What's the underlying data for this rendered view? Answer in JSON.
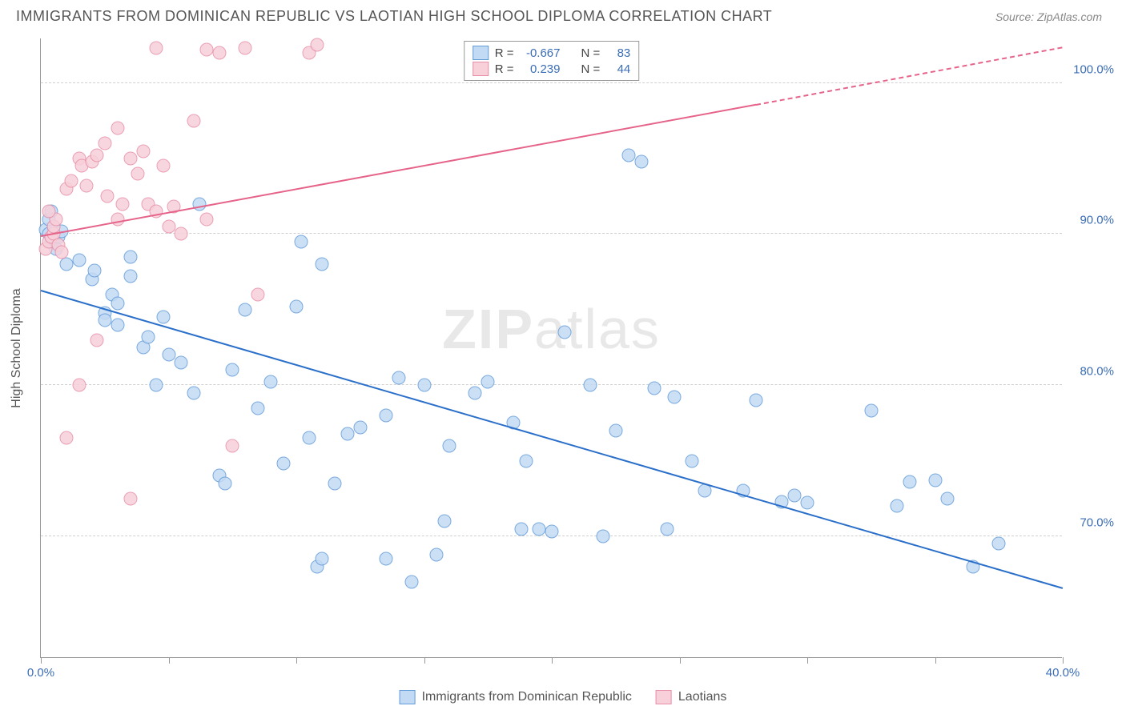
{
  "title": "IMMIGRANTS FROM DOMINICAN REPUBLIC VS LAOTIAN HIGH SCHOOL DIPLOMA CORRELATION CHART",
  "source": "Source: ZipAtlas.com",
  "watermark_a": "ZIP",
  "watermark_b": "atlas",
  "y_axis_title": "High School Diploma",
  "chart": {
    "type": "scatter",
    "xlim": [
      0,
      40
    ],
    "ylim": [
      62,
      103
    ],
    "x_ticks": [
      0,
      5,
      10,
      15,
      20,
      25,
      30,
      35,
      40
    ],
    "x_tick_labels": {
      "0": "0.0%",
      "40": "40.0%"
    },
    "y_ticks": [
      70,
      80,
      90,
      100
    ],
    "y_tick_labels": [
      "70.0%",
      "80.0%",
      "90.0%",
      "100.0%"
    ],
    "grid_color": "#d0d0d0",
    "background_color": "#ffffff",
    "axis_color": "#999999",
    "label_color": "#3b6db5",
    "point_radius": 8.5,
    "series": [
      {
        "name": "Immigrants from Dominican Republic",
        "fill": "#c3daf4",
        "stroke": "#629cd9",
        "line_color": "#2a6fc9",
        "R": "-0.667",
        "N": "83",
        "trend": {
          "x1": 0,
          "y1": 86.2,
          "x2": 40,
          "y2": 66.5
        },
        "points": [
          [
            0.2,
            90.3
          ],
          [
            0.3,
            90.0
          ],
          [
            0.4,
            89.5
          ],
          [
            0.5,
            90.5
          ],
          [
            0.5,
            89.7
          ],
          [
            0.6,
            89.0
          ],
          [
            0.7,
            89.8
          ],
          [
            0.8,
            90.2
          ],
          [
            0.3,
            91.0
          ],
          [
            0.4,
            91.5
          ],
          [
            1.0,
            88.0
          ],
          [
            1.5,
            88.3
          ],
          [
            2.0,
            87.0
          ],
          [
            2.1,
            87.6
          ],
          [
            2.5,
            84.8
          ],
          [
            2.5,
            84.3
          ],
          [
            2.8,
            86.0
          ],
          [
            3.0,
            85.4
          ],
          [
            3.0,
            84.0
          ],
          [
            3.5,
            88.5
          ],
          [
            3.5,
            87.2
          ],
          [
            4.0,
            82.5
          ],
          [
            4.2,
            83.2
          ],
          [
            4.5,
            80.0
          ],
          [
            4.8,
            84.5
          ],
          [
            5.0,
            82.0
          ],
          [
            5.5,
            81.5
          ],
          [
            6.0,
            79.5
          ],
          [
            6.2,
            92.0
          ],
          [
            7.0,
            74.0
          ],
          [
            7.2,
            73.5
          ],
          [
            7.5,
            81.0
          ],
          [
            8.0,
            85.0
          ],
          [
            8.5,
            78.5
          ],
          [
            9.0,
            80.2
          ],
          [
            9.5,
            74.8
          ],
          [
            10.0,
            85.2
          ],
          [
            10.2,
            89.5
          ],
          [
            10.5,
            76.5
          ],
          [
            10.8,
            68.0
          ],
          [
            11.0,
            68.5
          ],
          [
            11.0,
            88.0
          ],
          [
            11.5,
            73.5
          ],
          [
            12.0,
            76.8
          ],
          [
            12.5,
            77.2
          ],
          [
            13.5,
            68.5
          ],
          [
            13.5,
            78.0
          ],
          [
            14.0,
            80.5
          ],
          [
            14.5,
            67.0
          ],
          [
            15.0,
            80.0
          ],
          [
            15.5,
            68.8
          ],
          [
            15.8,
            71.0
          ],
          [
            16.0,
            76.0
          ],
          [
            17.0,
            79.5
          ],
          [
            17.5,
            80.2
          ],
          [
            18.5,
            77.5
          ],
          [
            18.8,
            70.5
          ],
          [
            19.0,
            75.0
          ],
          [
            19.5,
            70.5
          ],
          [
            20.0,
            70.3
          ],
          [
            20.5,
            83.5
          ],
          [
            21.5,
            80.0
          ],
          [
            22.0,
            70.0
          ],
          [
            22.5,
            77.0
          ],
          [
            24.0,
            79.8
          ],
          [
            24.5,
            70.5
          ],
          [
            24.8,
            79.2
          ],
          [
            25.5,
            75.0
          ],
          [
            26.0,
            73.0
          ],
          [
            27.5,
            73.0
          ],
          [
            28.0,
            79.0
          ],
          [
            29.0,
            72.3
          ],
          [
            29.5,
            72.7
          ],
          [
            30.0,
            72.2
          ],
          [
            32.5,
            78.3
          ],
          [
            33.5,
            72.0
          ],
          [
            34.0,
            73.6
          ],
          [
            35.0,
            73.7
          ],
          [
            35.5,
            72.5
          ],
          [
            36.5,
            68.0
          ],
          [
            37.5,
            69.5
          ],
          [
            23.5,
            94.8
          ],
          [
            23.0,
            95.2
          ]
        ]
      },
      {
        "name": "Laotians",
        "fill": "#f7d0da",
        "stroke": "#e78fa8",
        "line_color": "#e6638a",
        "R": "0.239",
        "N": "44",
        "trend": {
          "x1": 0,
          "y1": 89.8,
          "x2": 28,
          "y2": 98.5
        },
        "trend_dash": {
          "x1": 28,
          "y1": 98.5,
          "x2": 40,
          "y2": 102.3
        },
        "points": [
          [
            0.2,
            89.0
          ],
          [
            0.3,
            89.5
          ],
          [
            0.4,
            89.8
          ],
          [
            0.5,
            90.0
          ],
          [
            0.5,
            90.5
          ],
          [
            0.6,
            91.0
          ],
          [
            0.7,
            89.3
          ],
          [
            0.8,
            88.8
          ],
          [
            0.3,
            91.5
          ],
          [
            1.0,
            93.0
          ],
          [
            1.2,
            93.5
          ],
          [
            1.5,
            95.0
          ],
          [
            1.6,
            94.5
          ],
          [
            1.8,
            93.2
          ],
          [
            2.0,
            94.8
          ],
          [
            2.2,
            95.2
          ],
          [
            2.5,
            96.0
          ],
          [
            2.6,
            92.5
          ],
          [
            3.0,
            97.0
          ],
          [
            3.0,
            91.0
          ],
          [
            3.2,
            92.0
          ],
          [
            3.5,
            95.0
          ],
          [
            3.8,
            94.0
          ],
          [
            4.0,
            95.5
          ],
          [
            4.2,
            92.0
          ],
          [
            4.5,
            91.5
          ],
          [
            4.8,
            94.5
          ],
          [
            5.0,
            90.5
          ],
          [
            5.2,
            91.8
          ],
          [
            5.5,
            90.0
          ],
          [
            6.0,
            97.5
          ],
          [
            6.5,
            91.0
          ],
          [
            7.0,
            102.0
          ],
          [
            7.5,
            76.0
          ],
          [
            8.0,
            102.3
          ],
          [
            8.5,
            86.0
          ],
          [
            3.5,
            72.5
          ],
          [
            2.2,
            83.0
          ],
          [
            1.5,
            80.0
          ],
          [
            1.0,
            76.5
          ],
          [
            10.5,
            102.0
          ],
          [
            10.8,
            102.5
          ],
          [
            4.5,
            102.3
          ],
          [
            6.5,
            102.2
          ]
        ]
      }
    ]
  },
  "legend_top": {
    "r_label": "R =",
    "n_label": "N ="
  },
  "legend_bottom": [
    {
      "label": "Immigrants from Dominican Republic",
      "fill": "#c3daf4",
      "stroke": "#629cd9"
    },
    {
      "label": "Laotians",
      "fill": "#f7d0da",
      "stroke": "#e78fa8"
    }
  ]
}
